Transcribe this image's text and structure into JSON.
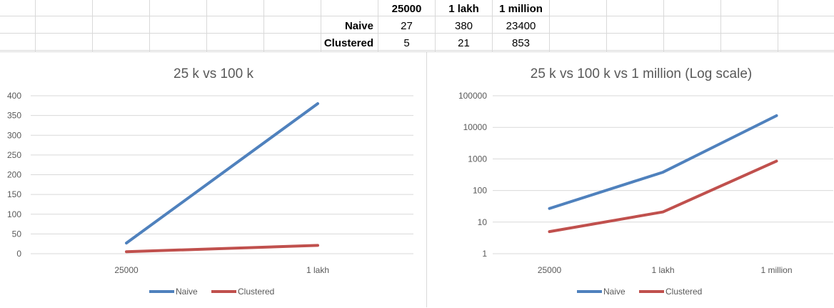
{
  "table": {
    "headers": [
      "25000",
      "1 lakh",
      "1 million"
    ],
    "rows": [
      {
        "label": "Naive",
        "values": [
          "27",
          "380",
          "23400"
        ]
      },
      {
        "label": "Clustered",
        "values": [
          "5",
          "21",
          "853"
        ]
      }
    ]
  },
  "colors": {
    "naive": "#4f81bd",
    "clustered": "#c0504d",
    "grid": "#d9d9d9",
    "text": "#595959"
  },
  "chart_data": [
    {
      "type": "line",
      "title": "25 k vs 100 k",
      "categories": [
        "25000",
        "1 lakh"
      ],
      "series": [
        {
          "name": "Naive",
          "values": [
            27,
            380
          ]
        },
        {
          "name": "Clustered",
          "values": [
            5,
            21
          ]
        }
      ],
      "ylim": [
        0,
        400
      ],
      "yticks": [
        0,
        50,
        100,
        150,
        200,
        250,
        300,
        350,
        400
      ],
      "ytick_labels": [
        "0",
        "50",
        "100",
        "150",
        "200",
        "250",
        "300",
        "350",
        "400"
      ],
      "log_scale": false,
      "grid": true,
      "legend_position": "bottom"
    },
    {
      "type": "line",
      "title": "25 k vs 100 k vs 1 million (Log scale)",
      "categories": [
        "25000",
        "1 lakh",
        "1 million"
      ],
      "series": [
        {
          "name": "Naive",
          "values": [
            27,
            380,
            23400
          ]
        },
        {
          "name": "Clustered",
          "values": [
            5,
            21,
            853
          ]
        }
      ],
      "ylim": [
        1,
        100000
      ],
      "yticks": [
        1,
        10,
        100,
        1000,
        10000,
        100000
      ],
      "ytick_labels": [
        "1",
        "10",
        "100",
        "1000",
        "10000",
        "100000"
      ],
      "log_scale": true,
      "grid": true,
      "legend_position": "bottom"
    }
  ]
}
